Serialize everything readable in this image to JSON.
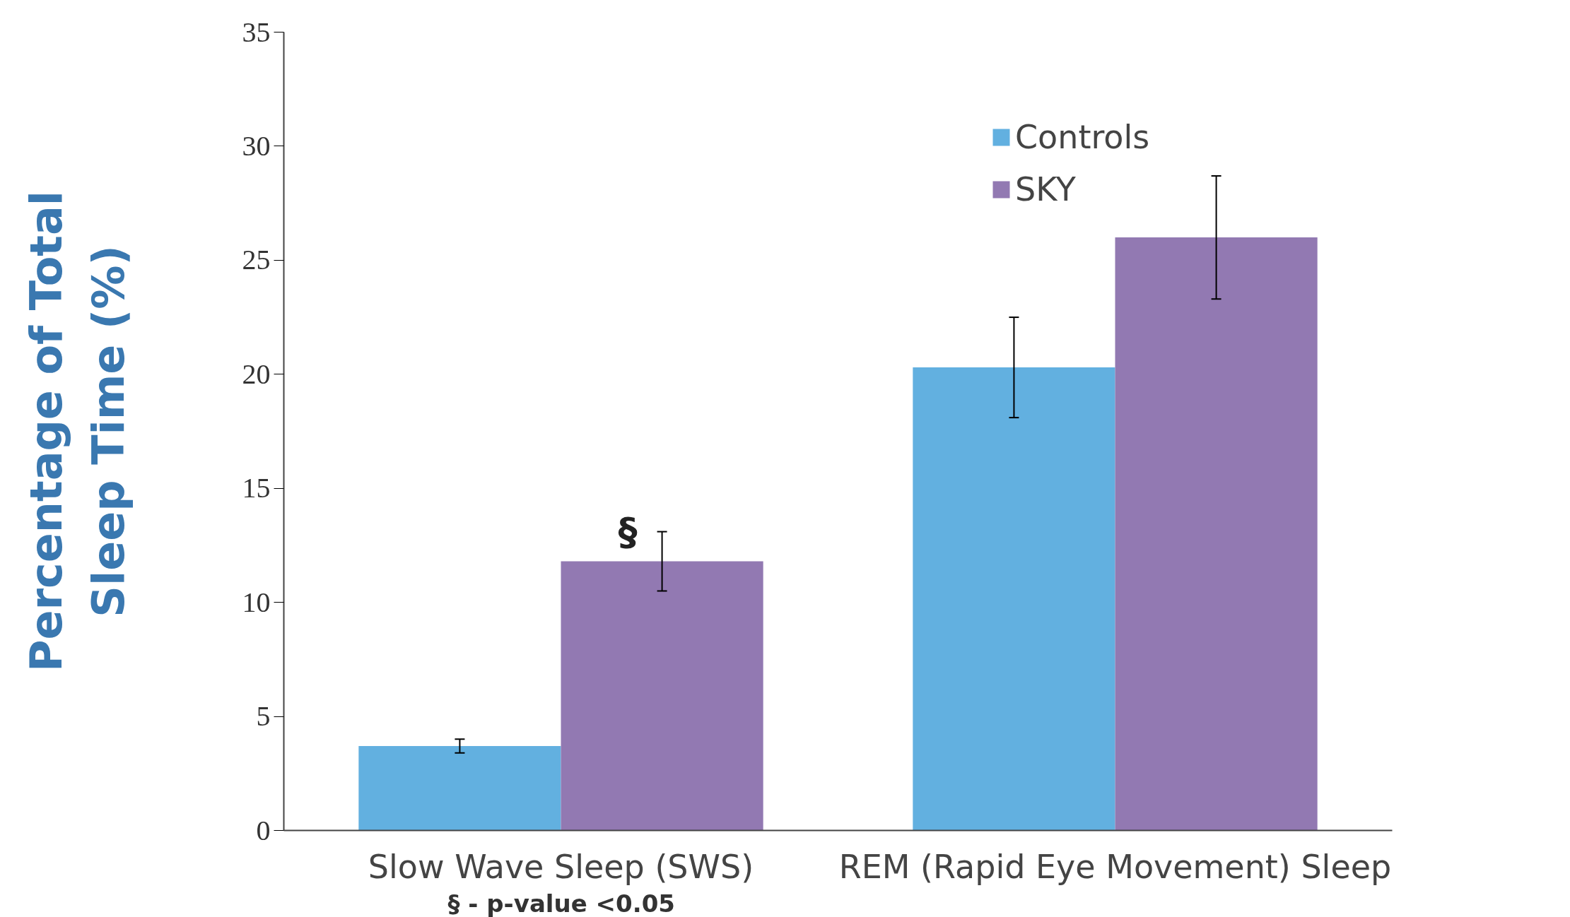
{
  "chart_data": {
    "type": "bar",
    "ylabel": "Percentage of Total\nSleep Time (%)",
    "categories": [
      "Slow Wave Sleep (SWS)",
      "REM (Rapid Eye Movement) Sleep"
    ],
    "series": [
      {
        "name": "Controls",
        "color": "#62b0e0",
        "values": [
          3.7,
          20.3
        ],
        "errors": [
          0.3,
          2.2
        ]
      },
      {
        "name": "SKY",
        "color": "#9279b2",
        "values": [
          11.8,
          26.0
        ],
        "errors": [
          1.3,
          2.7
        ]
      }
    ],
    "ylim": [
      0,
      35
    ],
    "yticks": [
      0,
      5,
      10,
      15,
      20,
      25,
      30,
      35
    ],
    "grid": false,
    "legend": "top right",
    "annotations": [
      "§",
      "§ - p-value <0.05"
    ]
  }
}
